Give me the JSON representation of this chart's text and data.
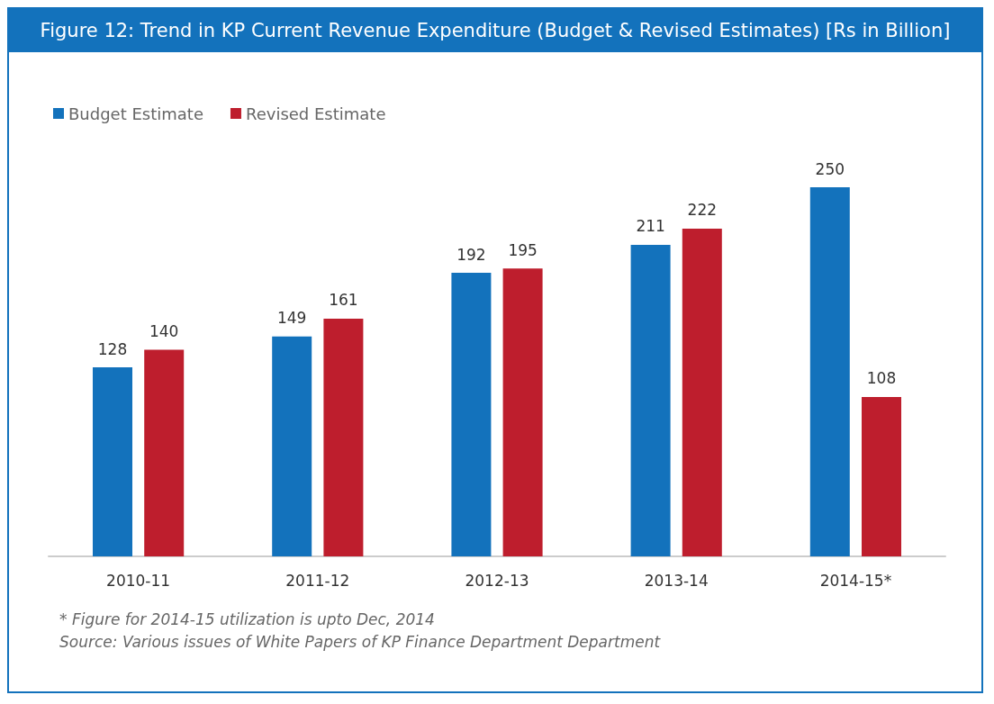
{
  "chart_data": {
    "type": "bar",
    "title": "Figure 12: Trend in KP Current Revenue Expenditure (Budget & Revised Estimates) [Rs in Billion]",
    "categories": [
      "2010-11",
      "2011-12",
      "2012-13",
      "2013-14",
      "2014-15*"
    ],
    "series": [
      {
        "name": "Budget Estimate",
        "color": "#1372bc",
        "values": [
          128,
          149,
          192,
          211,
          250
        ]
      },
      {
        "name": "Revised Estimate",
        "color": "#be1e2d",
        "values": [
          140,
          161,
          195,
          222,
          108
        ]
      }
    ],
    "data_labels": true,
    "grid": false,
    "legend": "top left",
    "annotations": [
      "* Figure for 2014-15 utilization is upto Dec, 2014",
      "Source: Various issues of White Papers of KP Finance Department Department"
    ]
  }
}
